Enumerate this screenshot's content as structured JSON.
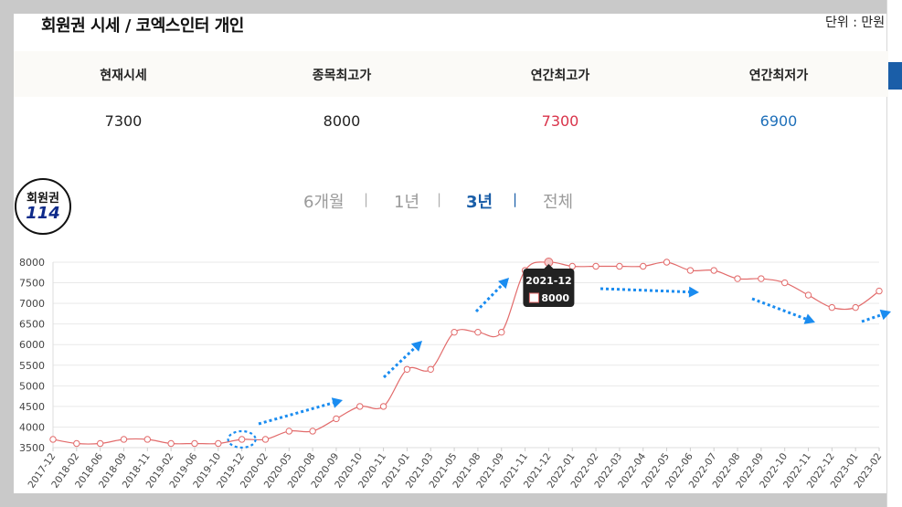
{
  "header": {
    "title": "회원권 시세 / 코엑스인터 개인",
    "unit": "단위 : 만원"
  },
  "stats": {
    "labels": [
      "현재시세",
      "종목최고가",
      "연간최고가",
      "연간최저가"
    ],
    "values": [
      "7300",
      "8000",
      "7300",
      "6900"
    ],
    "colors": {
      "high": "#d9334a",
      "low": "#1e6fb9"
    }
  },
  "logo": {
    "line1": "회원권",
    "line2": "114"
  },
  "periods": {
    "items": [
      "6개월",
      "1년",
      "3년",
      "전체"
    ],
    "active": "3년"
  },
  "chart_data": {
    "type": "line",
    "x": [
      "2017-12",
      "2018-02",
      "2018-06",
      "2018-09",
      "2018-11",
      "2019-02",
      "2019-06",
      "2019-10",
      "2019-12",
      "2020-02",
      "2020-05",
      "2020-08",
      "2020-09",
      "2020-10",
      "2020-11",
      "2021-01",
      "2021-03",
      "2021-05",
      "2021-08",
      "2021-09",
      "2021-11",
      "2021-12",
      "2022-01",
      "2022-02",
      "2022-03",
      "2022-04",
      "2022-05",
      "2022-06",
      "2022-07",
      "2022-08",
      "2022-09",
      "2022-10",
      "2022-11",
      "2022-12",
      "2023-01",
      "2023-02"
    ],
    "series": [
      {
        "values": [
          3700,
          3600,
          3600,
          3700,
          3700,
          3600,
          3600,
          3600,
          3700,
          3700,
          3900,
          3900,
          4200,
          4500,
          4500,
          5400,
          5400,
          6300,
          6300,
          6300,
          7800,
          8000,
          7900,
          7900,
          7900,
          7900,
          8000,
          7800,
          7800,
          7600,
          7600,
          7500,
          7200,
          6900,
          6900,
          7300
        ]
      }
    ],
    "yticks": [
      3500,
      4000,
      4500,
      5000,
      5500,
      6000,
      6500,
      7000,
      7500,
      8000
    ],
    "ylim": [
      3500,
      8000
    ],
    "grid": true,
    "tooltip": {
      "label": "2021-12",
      "value": "8000"
    },
    "colors": {
      "line": "#e26b6b",
      "arrow": "#1a8cf0"
    }
  }
}
